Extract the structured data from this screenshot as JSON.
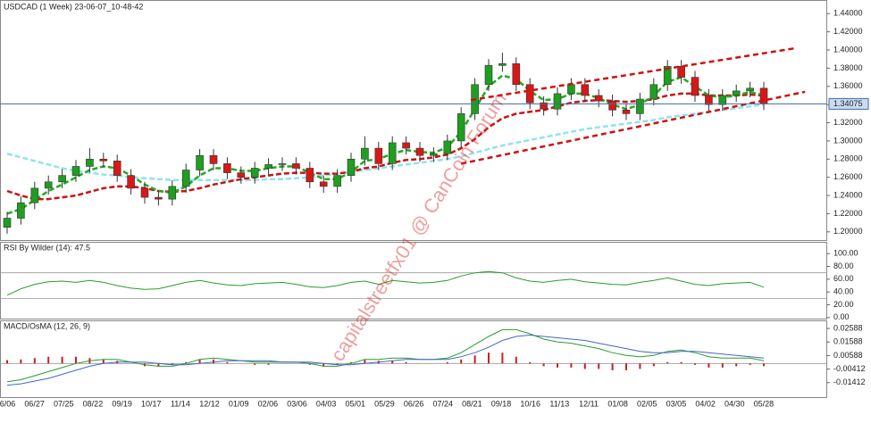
{
  "watermark": "capitalstreetfx01 @ CanCoin Forum",
  "chart_data": [
    {
      "type": "candlestick",
      "title": "USDCAD (1 Week) 23-06-07_10-48-42",
      "up_color": "#1f9e1f",
      "down_color": "#d81818",
      "open": [
        1.205,
        1.215,
        1.232,
        1.248,
        1.255,
        1.262,
        1.272,
        1.28,
        1.278,
        1.262,
        1.248,
        1.238,
        1.236,
        1.25,
        1.268,
        1.284,
        1.275,
        1.265,
        1.26,
        1.27,
        1.274,
        1.275,
        1.27,
        1.255,
        1.25,
        1.262,
        1.28,
        1.292,
        1.275,
        1.298,
        1.292,
        1.284,
        1.286,
        1.3,
        1.33,
        1.362,
        1.383,
        1.385,
        1.362,
        1.342,
        1.335,
        1.352,
        1.362,
        1.35,
        1.344,
        1.334,
        1.33,
        1.346,
        1.362,
        1.382,
        1.37,
        1.35,
        1.34,
        1.35,
        1.355,
        1.358
      ],
      "high": [
        1.222,
        1.239,
        1.255,
        1.262,
        1.269,
        1.279,
        1.292,
        1.287,
        1.285,
        1.269,
        1.255,
        1.245,
        1.257,
        1.275,
        1.291,
        1.291,
        1.282,
        1.272,
        1.277,
        1.281,
        1.282,
        1.282,
        1.277,
        1.262,
        1.269,
        1.287,
        1.305,
        1.299,
        1.305,
        1.305,
        1.299,
        1.293,
        1.307,
        1.337,
        1.369,
        1.39,
        1.397,
        1.392,
        1.369,
        1.349,
        1.359,
        1.369,
        1.369,
        1.357,
        1.351,
        1.341,
        1.353,
        1.369,
        1.389,
        1.389,
        1.377,
        1.357,
        1.357,
        1.362,
        1.365,
        1.365
      ],
      "low": [
        1.198,
        1.208,
        1.225,
        1.241,
        1.248,
        1.255,
        1.265,
        1.271,
        1.255,
        1.241,
        1.231,
        1.229,
        1.229,
        1.243,
        1.261,
        1.268,
        1.258,
        1.253,
        1.253,
        1.263,
        1.267,
        1.263,
        1.248,
        1.243,
        1.243,
        1.255,
        1.273,
        1.268,
        1.268,
        1.285,
        1.277,
        1.277,
        1.279,
        1.293,
        1.323,
        1.355,
        1.376,
        1.355,
        1.335,
        1.328,
        1.328,
        1.345,
        1.343,
        1.337,
        1.327,
        1.323,
        1.323,
        1.339,
        1.355,
        1.363,
        1.343,
        1.333,
        1.333,
        1.343,
        1.348,
        1.334
      ],
      "close": [
        1.215,
        1.232,
        1.248,
        1.255,
        1.262,
        1.272,
        1.28,
        1.278,
        1.262,
        1.248,
        1.238,
        1.236,
        1.25,
        1.268,
        1.284,
        1.275,
        1.265,
        1.26,
        1.27,
        1.274,
        1.275,
        1.27,
        1.255,
        1.25,
        1.262,
        1.28,
        1.292,
        1.275,
        1.298,
        1.292,
        1.284,
        1.286,
        1.3,
        1.33,
        1.362,
        1.383,
        1.385,
        1.362,
        1.342,
        1.335,
        1.352,
        1.362,
        1.35,
        1.344,
        1.334,
        1.33,
        1.346,
        1.362,
        1.382,
        1.37,
        1.35,
        1.34,
        1.35,
        1.355,
        1.358,
        1.341
      ],
      "overlays": [
        {
          "color": "#8fe3f0",
          "values": [
            1.286,
            1.282,
            1.278,
            1.274,
            1.27,
            1.267,
            1.265,
            1.263,
            1.262,
            1.26,
            1.259,
            1.258,
            1.257,
            1.257,
            1.257,
            1.257,
            1.257,
            1.257,
            1.257,
            1.258,
            1.258,
            1.259,
            1.26,
            1.262,
            1.264,
            1.266,
            1.268,
            1.27,
            1.272,
            1.274,
            1.276,
            1.278,
            1.28,
            1.283,
            1.287,
            1.291,
            1.295,
            1.298,
            1.301,
            1.304,
            1.307,
            1.31,
            1.313,
            1.315,
            1.317,
            1.319,
            1.321,
            1.323,
            1.326,
            1.328,
            1.33,
            1.332,
            1.334,
            1.336,
            1.338,
            1.34
          ]
        },
        {
          "color": "#cc1111",
          "values": [
            1.245,
            1.24,
            1.236,
            1.236,
            1.238,
            1.24,
            1.244,
            1.248,
            1.25,
            1.25,
            1.248,
            1.245,
            1.244,
            1.245,
            1.248,
            1.252,
            1.255,
            1.258,
            1.26,
            1.262,
            1.264,
            1.265,
            1.265,
            1.264,
            1.264,
            1.266,
            1.27,
            1.272,
            1.276,
            1.279,
            1.28,
            1.282,
            1.285,
            1.292,
            1.302,
            1.315,
            1.325,
            1.33,
            1.332,
            1.334,
            1.338,
            1.342,
            1.344,
            1.345,
            1.344,
            1.343,
            1.344,
            1.346,
            1.35,
            1.352,
            1.352,
            1.35,
            1.35,
            1.35,
            1.351,
            1.35
          ]
        },
        {
          "color": "#22aa22",
          "values": [
            1.22,
            1.225,
            1.235,
            1.245,
            1.252,
            1.26,
            1.268,
            1.272,
            1.27,
            1.262,
            1.252,
            1.245,
            1.243,
            1.25,
            1.262,
            1.27,
            1.27,
            1.267,
            1.267,
            1.27,
            1.272,
            1.272,
            1.265,
            1.258,
            1.258,
            1.266,
            1.278,
            1.28,
            1.286,
            1.29,
            1.288,
            1.287,
            1.293,
            1.31,
            1.335,
            1.36,
            1.372,
            1.368,
            1.355,
            1.345,
            1.346,
            1.352,
            1.352,
            1.347,
            1.34,
            1.335,
            1.34,
            1.35,
            1.365,
            1.37,
            1.36,
            1.35,
            1.348,
            1.35,
            1.354,
            1.35
          ]
        }
      ],
      "trendlines": [
        {
          "color": "#cc1111",
          "points": [
            [
              33.7,
              1.345
            ],
            [
              57.3,
              1.402
            ]
          ]
        },
        {
          "color": "#cc1111",
          "points": [
            [
              33,
              1.275
            ],
            [
              58,
              1.354
            ]
          ]
        }
      ],
      "last_price": 1.34075,
      "ylim": [
        1.19,
        1.455
      ],
      "yticks": [
        {
          "value": 1.2,
          "label": "1.20000"
        },
        {
          "value": 1.22,
          "label": "1.22000"
        },
        {
          "value": 1.24,
          "label": "1.24000"
        },
        {
          "value": 1.26,
          "label": "1.26000"
        },
        {
          "value": 1.28,
          "label": "1.28000"
        },
        {
          "value": 1.3,
          "label": "1.30000"
        },
        {
          "value": 1.32,
          "label": "1.32000"
        },
        {
          "value": 1.34,
          "label": "1.34000"
        },
        {
          "value": 1.36,
          "label": "1.36000"
        },
        {
          "value": 1.38,
          "label": "1.38000"
        },
        {
          "value": 1.4,
          "label": "1.40000"
        },
        {
          "value": 1.42,
          "label": "1.42000"
        },
        {
          "value": 1.44,
          "label": "1.44000"
        }
      ],
      "xticks": [
        "06/06",
        "06/27",
        "07/25",
        "08/22",
        "09/19",
        "10/17",
        "11/14",
        "12/12",
        "01/09",
        "02/06",
        "03/06",
        "04/03",
        "05/01",
        "05/29",
        "06/26",
        "07/24",
        "08/21",
        "09/18",
        "10/16",
        "11/13",
        "12/11",
        "01/08",
        "02/05",
        "03/05",
        "04/02",
        "04/30",
        "05/28"
      ]
    },
    {
      "type": "line",
      "title": "RSI By Wilder (14): 47.5",
      "color": "#2a9d2a",
      "values": [
        35,
        45,
        52,
        56,
        57,
        55,
        58,
        55,
        50,
        46,
        44,
        45,
        50,
        55,
        58,
        54,
        51,
        50,
        53,
        54,
        55,
        52,
        48,
        47,
        50,
        55,
        57,
        52,
        58,
        56,
        54,
        55,
        58,
        65,
        70,
        72,
        70,
        62,
        57,
        55,
        58,
        60,
        56,
        54,
        52,
        51,
        55,
        58,
        62,
        57,
        52,
        50,
        53,
        54,
        55,
        47.5
      ],
      "levels": [
        30,
        70
      ],
      "ylim": [
        -3,
        117
      ],
      "yticks": [
        {
          "value": 0,
          "label": "0.00"
        },
        {
          "value": 20,
          "label": "20.00"
        },
        {
          "value": 40,
          "label": "40.00"
        },
        {
          "value": 60,
          "label": "60.00"
        },
        {
          "value": 80,
          "label": "80.00"
        },
        {
          "value": 100,
          "label": "100.00"
        }
      ]
    },
    {
      "type": "macd",
      "title": "MACD/OsMA (12, 26, 9)",
      "series": [
        {
          "color": "#2a9d2a",
          "values": [
            -0.0135,
            -0.012,
            -0.009,
            -0.006,
            -0.003,
            0,
            0.002,
            0.003,
            0.003,
            0.001,
            -0.001,
            -0.002,
            -0.002,
            0,
            0.003,
            0.004,
            0.003,
            0.002,
            0.001,
            0.001,
            0.001,
            0.001,
            0,
            -0.002,
            -0.002,
            0,
            0.003,
            0.003,
            0.004,
            0.004,
            0.003,
            0.003,
            0.004,
            0.008,
            0.014,
            0.02,
            0.025,
            0.025,
            0.022,
            0.018,
            0.016,
            0.015,
            0.013,
            0.011,
            0.008,
            0.006,
            0.005,
            0.006,
            0.009,
            0.01,
            0.008,
            0.005,
            0.004,
            0.004,
            0.004,
            0.002
          ]
        },
        {
          "color": "#4466cc",
          "values": [
            -0.016,
            -0.015,
            -0.013,
            -0.011,
            -0.008,
            -0.005,
            -0.002,
            0,
            0.001,
            0.001,
            0.001,
            0,
            -0.001,
            -0.001,
            0,
            0.001,
            0.002,
            0.002,
            0.002,
            0.002,
            0.001,
            0.001,
            0.001,
            0,
            -0.001,
            -0.001,
            0,
            0.001,
            0.002,
            0.003,
            0.003,
            0.003,
            0.003,
            0.005,
            0.008,
            0.012,
            0.017,
            0.02,
            0.021,
            0.02,
            0.019,
            0.018,
            0.017,
            0.015,
            0.013,
            0.011,
            0.009,
            0.008,
            0.008,
            0.009,
            0.009,
            0.008,
            0.007,
            0.006,
            0.005,
            0.004
          ]
        }
      ],
      "histogram": {
        "color": "#c82020",
        "values": [
          0.0025,
          0.003,
          0.004,
          0.005,
          0.005,
          0.005,
          0.004,
          0.003,
          0.002,
          0,
          -0.002,
          -0.002,
          -0.001,
          0.001,
          0.003,
          0.003,
          0.001,
          0,
          -0.001,
          -0.001,
          0,
          0,
          -0.001,
          -0.002,
          -0.001,
          0.001,
          0.003,
          0.002,
          0.002,
          0.001,
          0,
          0,
          0.001,
          0.003,
          0.006,
          0.008,
          0.008,
          0.005,
          0.001,
          -0.002,
          -0.003,
          -0.003,
          -0.004,
          -0.004,
          -0.005,
          -0.005,
          -0.004,
          -0.002,
          0.001,
          0.001,
          -0.001,
          -0.003,
          -0.003,
          -0.002,
          -0.001,
          -0.002
        ]
      },
      "ylim": [
        -0.0255,
        0.0312
      ],
      "yticks": [
        0.02588,
        0.01588,
        0.00588,
        -0.00412,
        -0.01412
      ]
    }
  ]
}
